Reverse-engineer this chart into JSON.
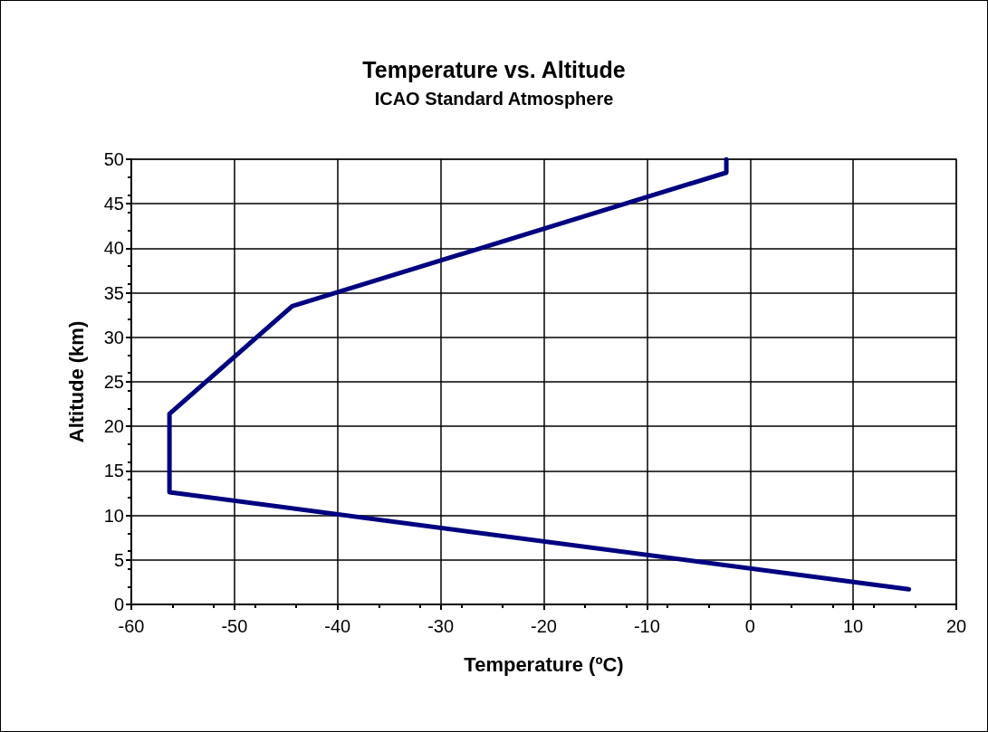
{
  "chart_data": {
    "type": "line",
    "title": "Temperature vs. Altitude",
    "subtitle": "ICAO Standard Atmosphere",
    "xlabel": "Temperature (ºC)",
    "ylabel": "Altitude (km)",
    "series": [
      {
        "color": "#000080",
        "x": [
          15.4,
          -56.3,
          -56.3,
          -44.4,
          -2.3,
          -2.3
        ],
        "values": [
          1.7,
          12.6,
          21.4,
          33.5,
          48.5,
          50
        ]
      }
    ],
    "xlim": [
      -60,
      20
    ],
    "xticks": [
      -60,
      -50,
      -40,
      -30,
      -20,
      -10,
      0,
      10,
      20
    ],
    "ylim": [
      0,
      50
    ],
    "yticks": [
      0,
      5,
      10,
      15,
      20,
      25,
      30,
      35,
      40,
      45,
      50
    ],
    "grid": true,
    "marker": "none",
    "line_style": "solid"
  }
}
